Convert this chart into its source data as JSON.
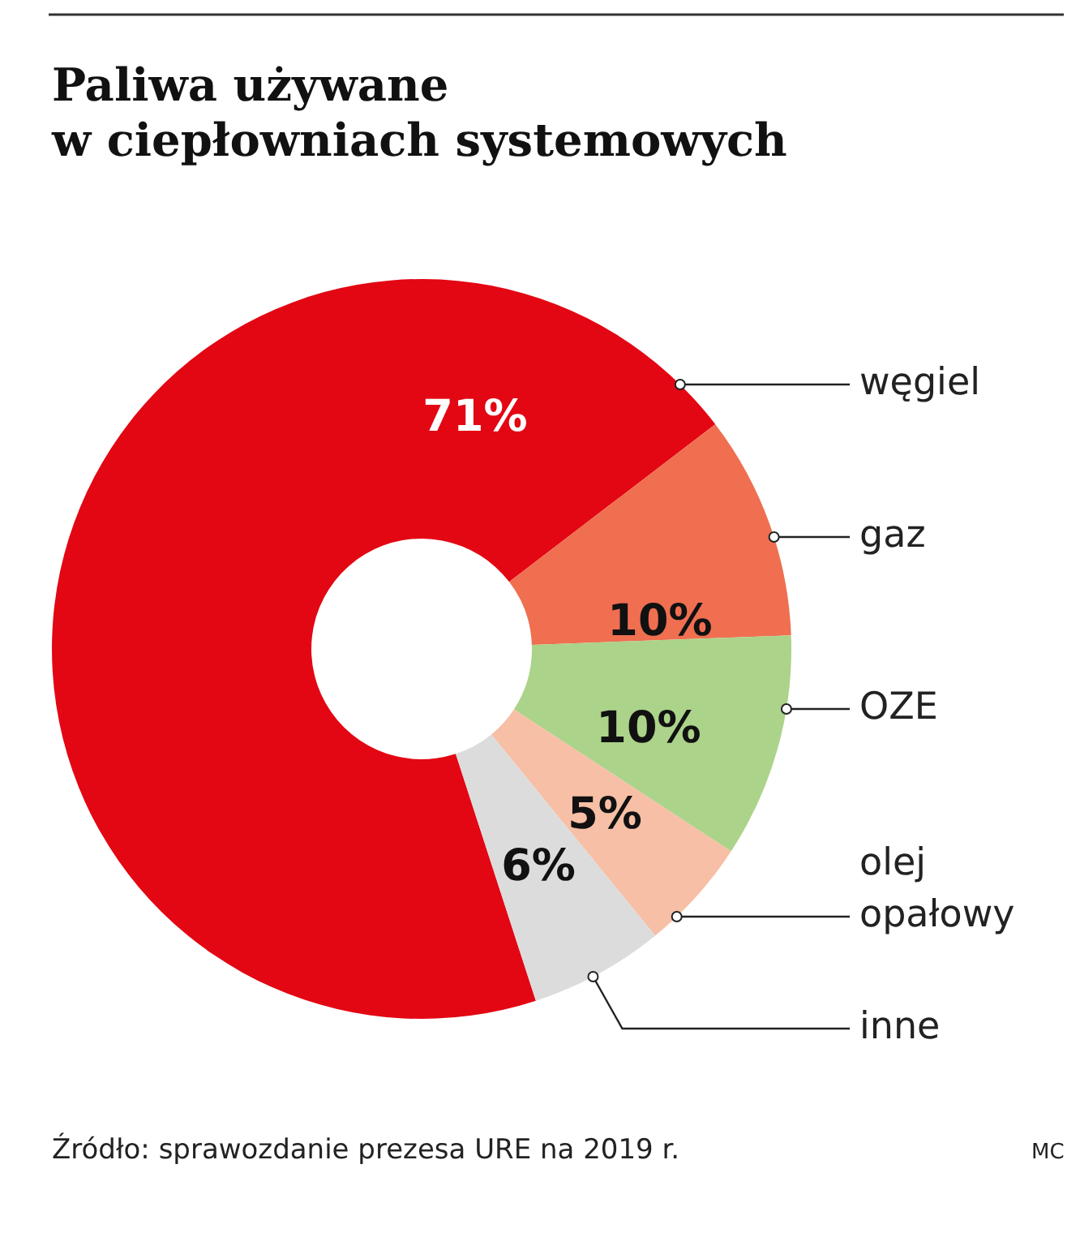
{
  "chart_data": {
    "type": "donut",
    "title": "Paliwa używane\nw ciepłowniach systemowych",
    "categories": [
      "węgiel",
      "gaz",
      "OZE",
      "olej\nopałowy",
      "inne"
    ],
    "values": [
      71,
      10,
      10,
      5,
      6
    ],
    "colors": [
      "#e30613",
      "#ef6f50",
      "#acd38a",
      "#f7bfa6",
      "#dcdcdc"
    ],
    "value_labels": [
      "71%",
      "10%",
      "10%",
      "5%",
      "6%"
    ],
    "annotations": [
      "Źródło: sprawozdanie prezesa URE na 2019 r.",
      "MC"
    ]
  }
}
